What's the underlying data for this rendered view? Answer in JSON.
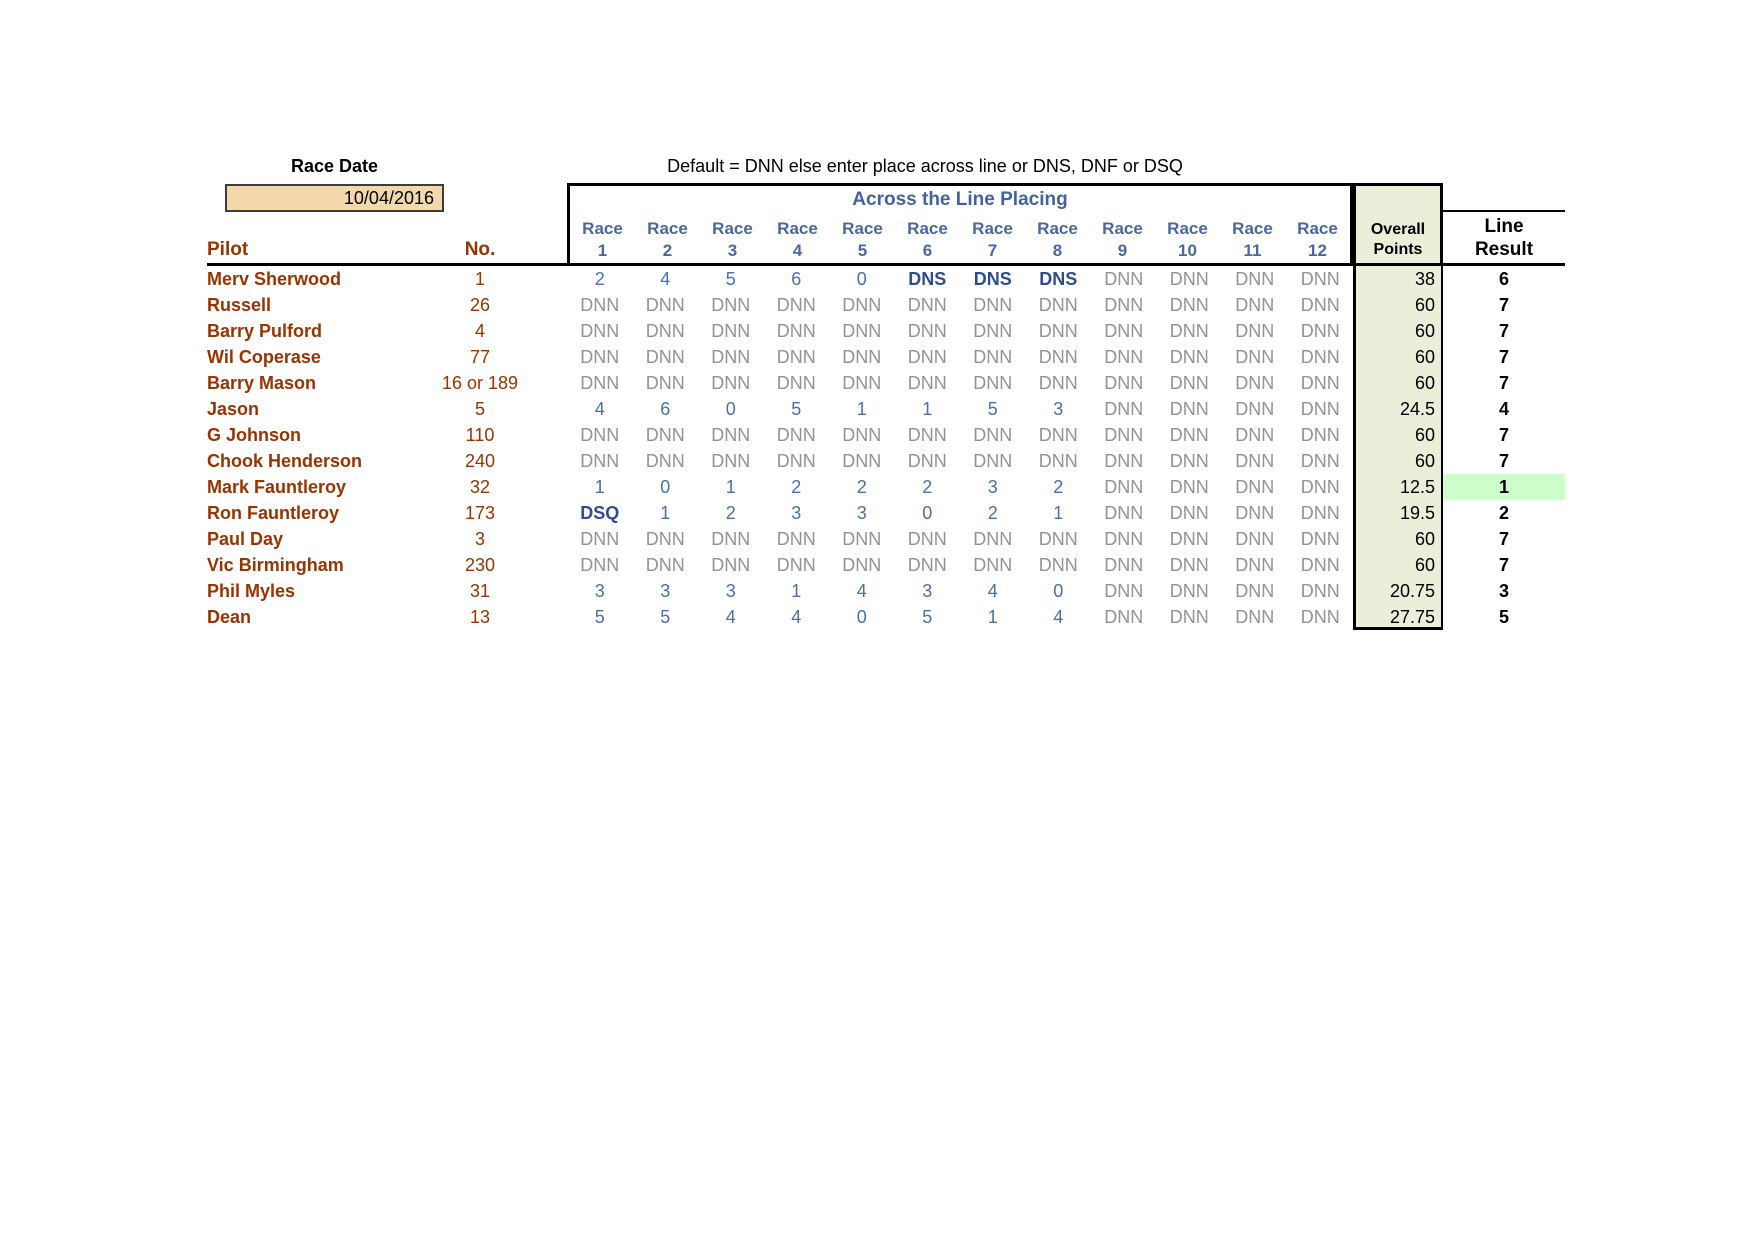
{
  "race_date": {
    "label": "Race Date",
    "value": "10/04/2016"
  },
  "instruction_note": "Default = DNN else enter place across line or DNS, DNF or DSQ",
  "colors": {
    "pilot_text": "#993300",
    "value_blue": "#4a6fae",
    "code_navy": "#2d4d8e",
    "dnn_gray": "#939393",
    "header_blue": "#4a689e",
    "date_box_fill": "#f2d8ab",
    "points_column_fill": "#ebeed9",
    "highlight_green": "#ccffcc"
  },
  "table": {
    "title": "Across the Line Placing",
    "pilot_header": "Pilot",
    "number_header": "No.",
    "race_label": "Race",
    "race_numbers": [
      "1",
      "2",
      "3",
      "4",
      "5",
      "6",
      "7",
      "8",
      "9",
      "10",
      "11",
      "12"
    ],
    "overall_points_header": [
      "Overall",
      "Points"
    ],
    "line_result_header": [
      "Line",
      "Result"
    ],
    "rows": [
      {
        "pilot": "Merv Sherwood",
        "no": "1",
        "races": [
          "2",
          "4",
          "5",
          "6",
          "0",
          "DNS",
          "DNS",
          "DNS",
          "DNN",
          "DNN",
          "DNN",
          "DNN"
        ],
        "points": "38",
        "result": "6",
        "highlight": false
      },
      {
        "pilot": "Russell",
        "no": "26",
        "races": [
          "DNN",
          "DNN",
          "DNN",
          "DNN",
          "DNN",
          "DNN",
          "DNN",
          "DNN",
          "DNN",
          "DNN",
          "DNN",
          "DNN"
        ],
        "points": "60",
        "result": "7",
        "highlight": false
      },
      {
        "pilot": "Barry Pulford",
        "no": "4",
        "races": [
          "DNN",
          "DNN",
          "DNN",
          "DNN",
          "DNN",
          "DNN",
          "DNN",
          "DNN",
          "DNN",
          "DNN",
          "DNN",
          "DNN"
        ],
        "points": "60",
        "result": "7",
        "highlight": false
      },
      {
        "pilot": "Wil Coperase",
        "no": "77",
        "races": [
          "DNN",
          "DNN",
          "DNN",
          "DNN",
          "DNN",
          "DNN",
          "DNN",
          "DNN",
          "DNN",
          "DNN",
          "DNN",
          "DNN"
        ],
        "points": "60",
        "result": "7",
        "highlight": false
      },
      {
        "pilot": "Barry Mason",
        "no": "16 or 189",
        "races": [
          "DNN",
          "DNN",
          "DNN",
          "DNN",
          "DNN",
          "DNN",
          "DNN",
          "DNN",
          "DNN",
          "DNN",
          "DNN",
          "DNN"
        ],
        "points": "60",
        "result": "7",
        "highlight": false
      },
      {
        "pilot": "Jason",
        "no": "5",
        "races": [
          "4",
          "6",
          "0",
          "5",
          "1",
          "1",
          "5",
          "3",
          "DNN",
          "DNN",
          "DNN",
          "DNN"
        ],
        "points": "24.5",
        "result": "4",
        "highlight": false
      },
      {
        "pilot": "G Johnson",
        "no": "110",
        "races": [
          "DNN",
          "DNN",
          "DNN",
          "DNN",
          "DNN",
          "DNN",
          "DNN",
          "DNN",
          "DNN",
          "DNN",
          "DNN",
          "DNN"
        ],
        "points": "60",
        "result": "7",
        "highlight": false
      },
      {
        "pilot": "Chook Henderson",
        "no": "240",
        "races": [
          "DNN",
          "DNN",
          "DNN",
          "DNN",
          "DNN",
          "DNN",
          "DNN",
          "DNN",
          "DNN",
          "DNN",
          "DNN",
          "DNN"
        ],
        "points": "60",
        "result": "7",
        "highlight": false
      },
      {
        "pilot": "Mark Fauntleroy",
        "no": "32",
        "races": [
          "1",
          "0",
          "1",
          "2",
          "2",
          "2",
          "3",
          "2",
          "DNN",
          "DNN",
          "DNN",
          "DNN"
        ],
        "points": "12.5",
        "result": "1",
        "highlight": true
      },
      {
        "pilot": "Ron Fauntleroy",
        "no": "173",
        "races": [
          "DSQ",
          "1",
          "2",
          "3",
          "3",
          "0",
          "2",
          "1",
          "DNN",
          "DNN",
          "DNN",
          "DNN"
        ],
        "points": "19.5",
        "result": "2",
        "highlight": false
      },
      {
        "pilot": "Paul Day",
        "no": "3",
        "races": [
          "DNN",
          "DNN",
          "DNN",
          "DNN",
          "DNN",
          "DNN",
          "DNN",
          "DNN",
          "DNN",
          "DNN",
          "DNN",
          "DNN"
        ],
        "points": "60",
        "result": "7",
        "highlight": false
      },
      {
        "pilot": "Vic Birmingham",
        "no": "230",
        "races": [
          "DNN",
          "DNN",
          "DNN",
          "DNN",
          "DNN",
          "DNN",
          "DNN",
          "DNN",
          "DNN",
          "DNN",
          "DNN",
          "DNN"
        ],
        "points": "60",
        "result": "7",
        "highlight": false
      },
      {
        "pilot": "Phil Myles",
        "no": "31",
        "races": [
          "3",
          "3",
          "3",
          "1",
          "4",
          "3",
          "4",
          "0",
          "DNN",
          "DNN",
          "DNN",
          "DNN"
        ],
        "points": "20.75",
        "result": "3",
        "highlight": false
      },
      {
        "pilot": "Dean",
        "no": "13",
        "races": [
          "5",
          "5",
          "4",
          "4",
          "0",
          "5",
          "1",
          "4",
          "DNN",
          "DNN",
          "DNN",
          "DNN"
        ],
        "points": "27.75",
        "result": "5",
        "highlight": false
      }
    ]
  }
}
